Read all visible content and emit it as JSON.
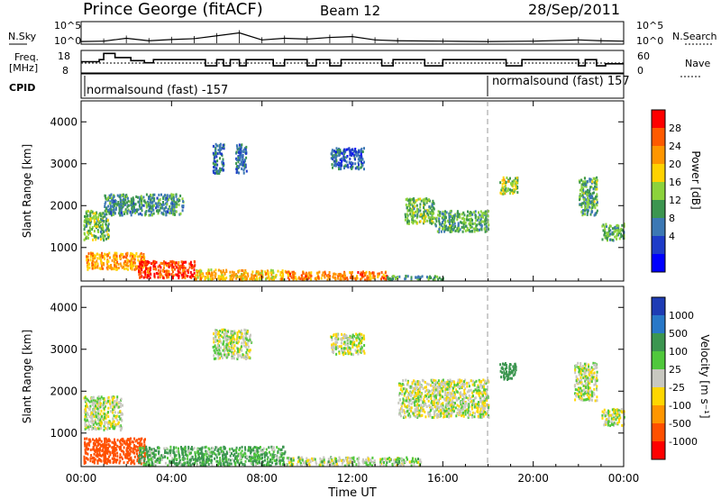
{
  "header": {
    "station": "Prince George (fitACF)",
    "beam": "Beam 12",
    "date": "28/Sep/2011"
  },
  "panels": {
    "noise": {
      "left_label": "N.Sky",
      "right_label": "N.Search",
      "left_ticks": [
        "10^5",
        "10^0"
      ],
      "right_ticks": [
        "10^5",
        "10^0"
      ]
    },
    "freq": {
      "left_label_1": "Freq.",
      "left_label_2": "[MHz]",
      "left_ticks": [
        "18",
        "8"
      ],
      "right_label": "Nave",
      "right_ticks": [
        "60",
        "0"
      ]
    },
    "cpid": {
      "label": "CPID",
      "segments": [
        "normalsound (fast) -157",
        "normalsound (fast) 157"
      ]
    },
    "power": {
      "ylabel": "Slant Range [km]",
      "yticks": [
        "4000",
        "3000",
        "2000",
        "1000"
      ],
      "cbar_title": "Power [dB]",
      "cbar_ticks": [
        "28",
        "24",
        "20",
        "16",
        "12",
        "8",
        "4"
      ],
      "cbar_colors": [
        "#ff0000",
        "#ff5a00",
        "#ff9600",
        "#ffd200",
        "#8cd23c",
        "#3c9650",
        "#3c78b4",
        "#1e3cc8",
        "#0000ff"
      ]
    },
    "velocity": {
      "ylabel": "Slant Range [km]",
      "yticks": [
        "4000",
        "3000",
        "2000",
        "1000"
      ],
      "cbar_title": "Velocity [m s⁻¹]",
      "cbar_ticks": [
        "1000",
        "500",
        "100",
        "25",
        "-25",
        "-100",
        "-500",
        "-1000"
      ],
      "cbar_colors": [
        "#1e3cb4",
        "#2878c8",
        "#3c9650",
        "#50c83c",
        "#c8c8c0",
        "#ffd700",
        "#ff9600",
        "#ff5000",
        "#ff0000"
      ]
    }
  },
  "x_axis": {
    "ticks": [
      "00:00",
      "04:00",
      "08:00",
      "12:00",
      "16:00",
      "20:00",
      "00:00"
    ],
    "label": "Time UT"
  },
  "chart_data": [
    {
      "type": "line",
      "name": "noise",
      "x_range_hours": [
        0,
        24
      ],
      "note_series": [
        "N.Sky",
        "N.Search"
      ],
      "ylim_log10": [
        0,
        5
      ],
      "points_hours": [
        [
          0,
          0.4
        ],
        [
          1,
          0.5
        ],
        [
          2,
          1.2
        ],
        [
          3,
          0.6
        ],
        [
          4,
          0.9
        ],
        [
          5,
          1.1
        ],
        [
          6,
          1.8
        ],
        [
          7,
          2.5
        ],
        [
          8,
          0.8
        ],
        [
          9,
          1.2
        ],
        [
          10,
          1.0
        ],
        [
          11,
          1.4
        ],
        [
          12,
          1.6
        ],
        [
          13,
          0.8
        ],
        [
          14,
          0.6
        ],
        [
          16,
          0.5
        ],
        [
          18,
          0.4
        ],
        [
          20,
          0.5
        ],
        [
          22,
          0.8
        ],
        [
          23,
          0.6
        ],
        [
          24,
          0.5
        ]
      ]
    },
    {
      "type": "line",
      "name": "frequency",
      "ylabel": "Freq. [MHz]",
      "ylim": [
        8,
        18
      ],
      "steps_hours": [
        [
          0,
          13
        ],
        [
          0.8,
          14
        ],
        [
          1.0,
          17
        ],
        [
          1.5,
          15
        ],
        [
          2.2,
          13.5
        ],
        [
          2.8,
          12.5
        ],
        [
          3.2,
          14
        ],
        [
          5.5,
          11
        ],
        [
          6.0,
          14
        ],
        [
          6.3,
          11
        ],
        [
          6.6,
          14
        ],
        [
          7.0,
          11
        ],
        [
          7.3,
          14
        ],
        [
          8.5,
          11
        ],
        [
          9.0,
          14
        ],
        [
          10.0,
          11
        ],
        [
          10.4,
          14
        ],
        [
          11.0,
          11
        ],
        [
          11.5,
          14
        ],
        [
          13.3,
          11
        ],
        [
          13.8,
          14
        ],
        [
          15.2,
          11
        ],
        [
          16.0,
          14
        ],
        [
          18.8,
          11
        ],
        [
          19.5,
          14
        ],
        [
          22.0,
          11
        ],
        [
          22.3,
          14
        ],
        [
          22.8,
          11
        ],
        [
          23.2,
          12
        ],
        [
          24,
          12
        ]
      ],
      "nave_dotted_level": 0.5
    },
    {
      "type": "heatmap",
      "name": "power",
      "x_range_hours": [
        0,
        24
      ],
      "ylim": [
        200,
        4500
      ],
      "ylabel": "Slant Range [km]",
      "zlabel": "Power [dB]",
      "zlim": [
        0,
        30
      ],
      "blobs": [
        {
          "t0": 0.1,
          "t1": 1.2,
          "r0": 1200,
          "r1": 1900,
          "p": 14
        },
        {
          "t0": 0.2,
          "t1": 2.8,
          "r0": 500,
          "r1": 900,
          "p": 22
        },
        {
          "t0": 2.5,
          "t1": 5.0,
          "r0": 300,
          "r1": 700,
          "p": 28
        },
        {
          "t0": 5.0,
          "t1": 9.0,
          "r0": 250,
          "r1": 500,
          "p": 20
        },
        {
          "t0": 9.0,
          "t1": 13.5,
          "r0": 250,
          "r1": 450,
          "p": 24
        },
        {
          "t0": 13.5,
          "t1": 16.0,
          "r0": 250,
          "r1": 350,
          "p": 10
        },
        {
          "t0": 1.0,
          "t1": 4.5,
          "r0": 1800,
          "r1": 2300,
          "p": 10
        },
        {
          "t0": 5.8,
          "t1": 6.3,
          "r0": 2800,
          "r1": 3500,
          "p": 8
        },
        {
          "t0": 6.8,
          "t1": 7.3,
          "r0": 2800,
          "r1": 3500,
          "p": 8
        },
        {
          "t0": 11.0,
          "t1": 12.5,
          "r0": 2900,
          "r1": 3400,
          "p": 6
        },
        {
          "t0": 14.3,
          "t1": 15.6,
          "r0": 1600,
          "r1": 2200,
          "p": 14
        },
        {
          "t0": 15.6,
          "t1": 18.0,
          "r0": 1400,
          "r1": 1900,
          "p": 12
        },
        {
          "t0": 18.5,
          "t1": 19.3,
          "r0": 2300,
          "r1": 2700,
          "p": 16
        },
        {
          "t0": 22.0,
          "t1": 22.8,
          "r0": 1800,
          "r1": 2700,
          "p": 12
        },
        {
          "t0": 23.0,
          "t1": 24.0,
          "r0": 1200,
          "r1": 1600,
          "p": 12
        }
      ]
    },
    {
      "type": "heatmap",
      "name": "velocity",
      "x_range_hours": [
        0,
        24
      ],
      "ylim": [
        200,
        4500
      ],
      "ylabel": "Slant Range [km]",
      "zlabel": "Velocity [m s⁻¹]",
      "zlim": [
        -1000,
        1000
      ],
      "blobs": [
        {
          "t0": 0.1,
          "t1": 2.8,
          "r0": 300,
          "r1": 900,
          "v": -400
        },
        {
          "t0": 0.1,
          "t1": 1.8,
          "r0": 1100,
          "r1": 1900,
          "v": 0
        },
        {
          "t0": 2.5,
          "t1": 9.0,
          "r0": 250,
          "r1": 700,
          "v": 70
        },
        {
          "t0": 9.0,
          "t1": 15.0,
          "r0": 250,
          "r1": 450,
          "v": 10
        },
        {
          "t0": 5.8,
          "t1": 7.5,
          "r0": 2800,
          "r1": 3500,
          "v": 0
        },
        {
          "t0": 11.0,
          "t1": 12.5,
          "r0": 2900,
          "r1": 3400,
          "v": 0
        },
        {
          "t0": 14.0,
          "t1": 18.0,
          "r0": 1400,
          "r1": 2300,
          "v": 0
        },
        {
          "t0": 18.5,
          "t1": 19.2,
          "r0": 2300,
          "r1": 2700,
          "v": 200
        },
        {
          "t0": 21.8,
          "t1": 22.8,
          "r0": 1800,
          "r1": 2700,
          "v": 0
        },
        {
          "t0": 23.0,
          "t1": 24.0,
          "r0": 1200,
          "r1": 1600,
          "v": 0
        }
      ]
    }
  ]
}
